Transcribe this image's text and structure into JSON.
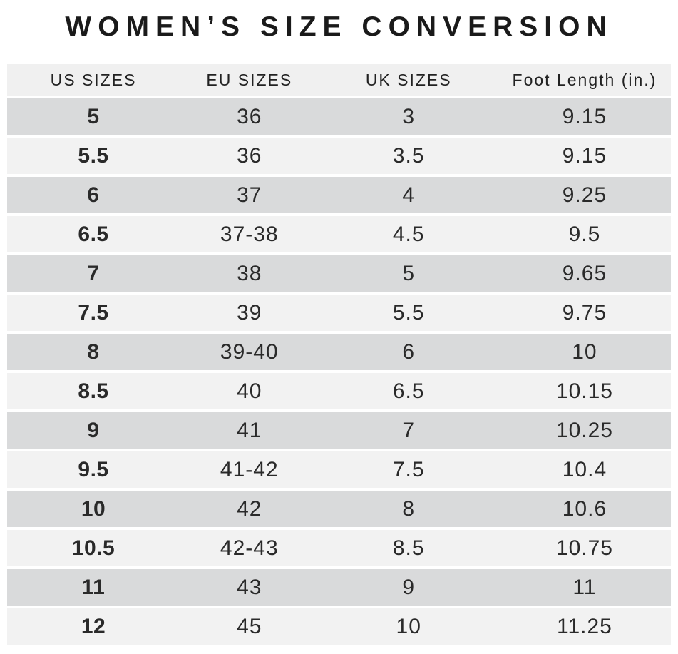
{
  "title": "WOMEN’S SIZE CONVERSION",
  "colors": {
    "page_bg": "#ffffff",
    "header_bg": "#f0f0f0",
    "row_dark_bg": "#d9dadb",
    "row_light_bg": "#f2f2f2",
    "title_text": "#1a1a1a",
    "cell_text": "#2a2a2a"
  },
  "chart_data": {
    "type": "table",
    "title": "WOMEN’S SIZE CONVERSION",
    "columns": [
      "US SIZES",
      "EU SIZES",
      "UK SIZES",
      "Foot Length (in.)"
    ],
    "rows": [
      [
        "5",
        "36",
        "3",
        "9.15"
      ],
      [
        "5.5",
        "36",
        "3.5",
        "9.15"
      ],
      [
        "6",
        "37",
        "4",
        "9.25"
      ],
      [
        "6.5",
        "37-38",
        "4.5",
        "9.5"
      ],
      [
        "7",
        "38",
        "5",
        "9.65"
      ],
      [
        "7.5",
        "39",
        "5.5",
        "9.75"
      ],
      [
        "8",
        "39-40",
        "6",
        "10"
      ],
      [
        "8.5",
        "40",
        "6.5",
        "10.15"
      ],
      [
        "9",
        "41",
        "7",
        "10.25"
      ],
      [
        "9.5",
        "41-42",
        "7.5",
        "10.4"
      ],
      [
        "10",
        "42",
        "8",
        "10.6"
      ],
      [
        "10.5",
        "42-43",
        "8.5",
        "10.75"
      ],
      [
        "11",
        "43",
        "9",
        "11"
      ],
      [
        "12",
        "45",
        "10",
        "11.25"
      ]
    ],
    "layout": {
      "striped": true,
      "first_data_row_shade": "dark",
      "row_separator_color": "#ffffff",
      "first_column_bold": true
    }
  }
}
